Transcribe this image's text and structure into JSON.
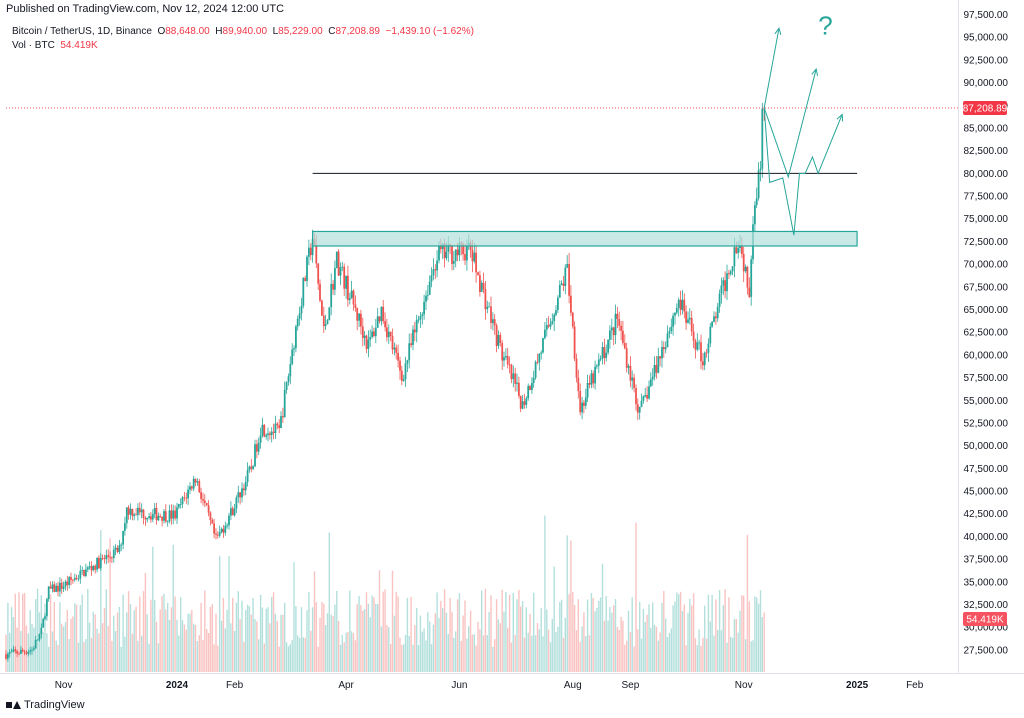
{
  "header": {
    "published": "Published on TradingView.com, Nov 12, 2024 12:00 UTC"
  },
  "legend": {
    "symbol": "Bitcoin / TetherUS, 1D, Binance",
    "open_label": "O",
    "open": "88,648.00",
    "high_label": "H",
    "high": "89,940.00",
    "low_label": "L",
    "low": "85,229.00",
    "close_label": "C",
    "close": "87,208.89",
    "change": "−1,439.10 (−1.62%)",
    "vol_label": "Vol · BTC",
    "vol": "54.419K"
  },
  "footer": {
    "brand": "TradingView"
  },
  "colors": {
    "up": "#26a69a",
    "down": "#ef5350",
    "zone_fill": "#b2dfdb",
    "zone_stroke": "#26a69a",
    "price_tag": "#f23645",
    "annotation": "#26a69a",
    "axis_text": "#131722"
  },
  "chart_data": {
    "type": "candlestick",
    "symbol": "BTCUSDT",
    "timeframe": "1D",
    "y_range": [
      25500,
      98000
    ],
    "y_ticks": [
      "97,500.00",
      "95,000.00",
      "92,500.00",
      "90,000.00",
      "87,500.00",
      "85,000.00",
      "82,500.00",
      "80,000.00",
      "77,500.00",
      "75,000.00",
      "72,500.00",
      "70,000.00",
      "67,500.00",
      "65,000.00",
      "62,500.00",
      "60,000.00",
      "57,500.00",
      "55,000.00",
      "52,500.00",
      "50,000.00",
      "47,500.00",
      "45,000.00",
      "42,500.00",
      "40,000.00",
      "37,500.00",
      "35,000.00",
      "32,500.00",
      "30,000.00",
      "27,500.00"
    ],
    "x_ticks": [
      {
        "label": "Nov",
        "date": "2023-11-01",
        "bold": false
      },
      {
        "label": "2024",
        "date": "2024-01-01",
        "bold": true
      },
      {
        "label": "Feb",
        "date": "2024-02-01",
        "bold": false
      },
      {
        "label": "Apr",
        "date": "2024-04-01",
        "bold": false
      },
      {
        "label": "Jun",
        "date": "2024-06-01",
        "bold": false
      },
      {
        "label": "Aug",
        "date": "2024-08-01",
        "bold": false
      },
      {
        "label": "Sep",
        "date": "2024-09-01",
        "bold": false
      },
      {
        "label": "Nov",
        "date": "2024-11-01",
        "bold": false
      },
      {
        "label": "2025",
        "date": "2025-01-01",
        "bold": true
      },
      {
        "label": "Feb",
        "date": "2025-02-01",
        "bold": false
      }
    ],
    "x_range": [
      "2023-10-01",
      "2025-02-20"
    ],
    "last_price": "87,208.89",
    "last_volume": "54.419K",
    "price_path": [
      [
        "2023-10-01",
        27000
      ],
      [
        "2023-10-15",
        27500
      ],
      [
        "2023-10-20",
        29500
      ],
      [
        "2023-10-24",
        34000
      ],
      [
        "2023-11-01",
        34600
      ],
      [
        "2023-11-15",
        36500
      ],
      [
        "2023-12-01",
        38500
      ],
      [
        "2023-12-05",
        43000
      ],
      [
        "2023-12-15",
        42500
      ],
      [
        "2023-12-31",
        42300
      ],
      [
        "2024-01-11",
        46500
      ],
      [
        "2024-01-22",
        39500
      ],
      [
        "2024-01-31",
        43000
      ],
      [
        "2024-02-10",
        47500
      ],
      [
        "2024-02-15",
        52000
      ],
      [
        "2024-02-25",
        51500
      ],
      [
        "2024-03-05",
        63000
      ],
      [
        "2024-03-14",
        73000
      ],
      [
        "2024-03-20",
        62500
      ],
      [
        "2024-03-27",
        70500
      ],
      [
        "2024-04-13",
        61000
      ],
      [
        "2024-04-20",
        65000
      ],
      [
        "2024-05-01",
        57500
      ],
      [
        "2024-05-20",
        71000
      ],
      [
        "2024-06-07",
        71500
      ],
      [
        "2024-06-24",
        60000
      ],
      [
        "2024-07-05",
        54500
      ],
      [
        "2024-07-14",
        60000
      ],
      [
        "2024-07-29",
        69500
      ],
      [
        "2024-08-05",
        54000
      ],
      [
        "2024-08-25",
        64000
      ],
      [
        "2024-09-06",
        53500
      ],
      [
        "2024-09-27",
        66000
      ],
      [
        "2024-10-10",
        59500
      ],
      [
        "2024-10-29",
        73000
      ],
      [
        "2024-11-04",
        67500
      ],
      [
        "2024-11-06",
        75500
      ],
      [
        "2024-11-10",
        81000
      ],
      [
        "2024-11-11",
        88600
      ],
      [
        "2024-11-12",
        87208.89
      ]
    ],
    "resistance_zone": {
      "from": "2024-03-14",
      "to": "2025-01-01",
      "low": 72000,
      "high": 73600
    },
    "horizontal_line": {
      "from": "2024-03-14",
      "to": "2025-01-01",
      "price": 80000
    },
    "scenario_arrows": [
      [
        [
          "2024-11-12",
          87208.89
        ],
        [
          "2024-11-20",
          96000
        ]
      ],
      [
        [
          "2024-11-12",
          87208.89
        ],
        [
          "2024-11-25",
          79600
        ],
        [
          "2024-12-10",
          91500
        ]
      ],
      [
        [
          "2024-11-12",
          87208.89
        ],
        [
          "2024-11-15",
          79000
        ],
        [
          "2024-11-22",
          79500
        ],
        [
          "2024-11-28",
          73200
        ],
        [
          "2024-12-01",
          80000
        ],
        [
          "2024-12-04",
          80000
        ],
        [
          "2024-12-08",
          81800
        ],
        [
          "2024-12-11",
          80000
        ],
        [
          "2024-12-24",
          86500
        ]
      ]
    ],
    "question_mark": {
      "text": "?",
      "date": "2024-12-15",
      "price": 95300
    }
  }
}
